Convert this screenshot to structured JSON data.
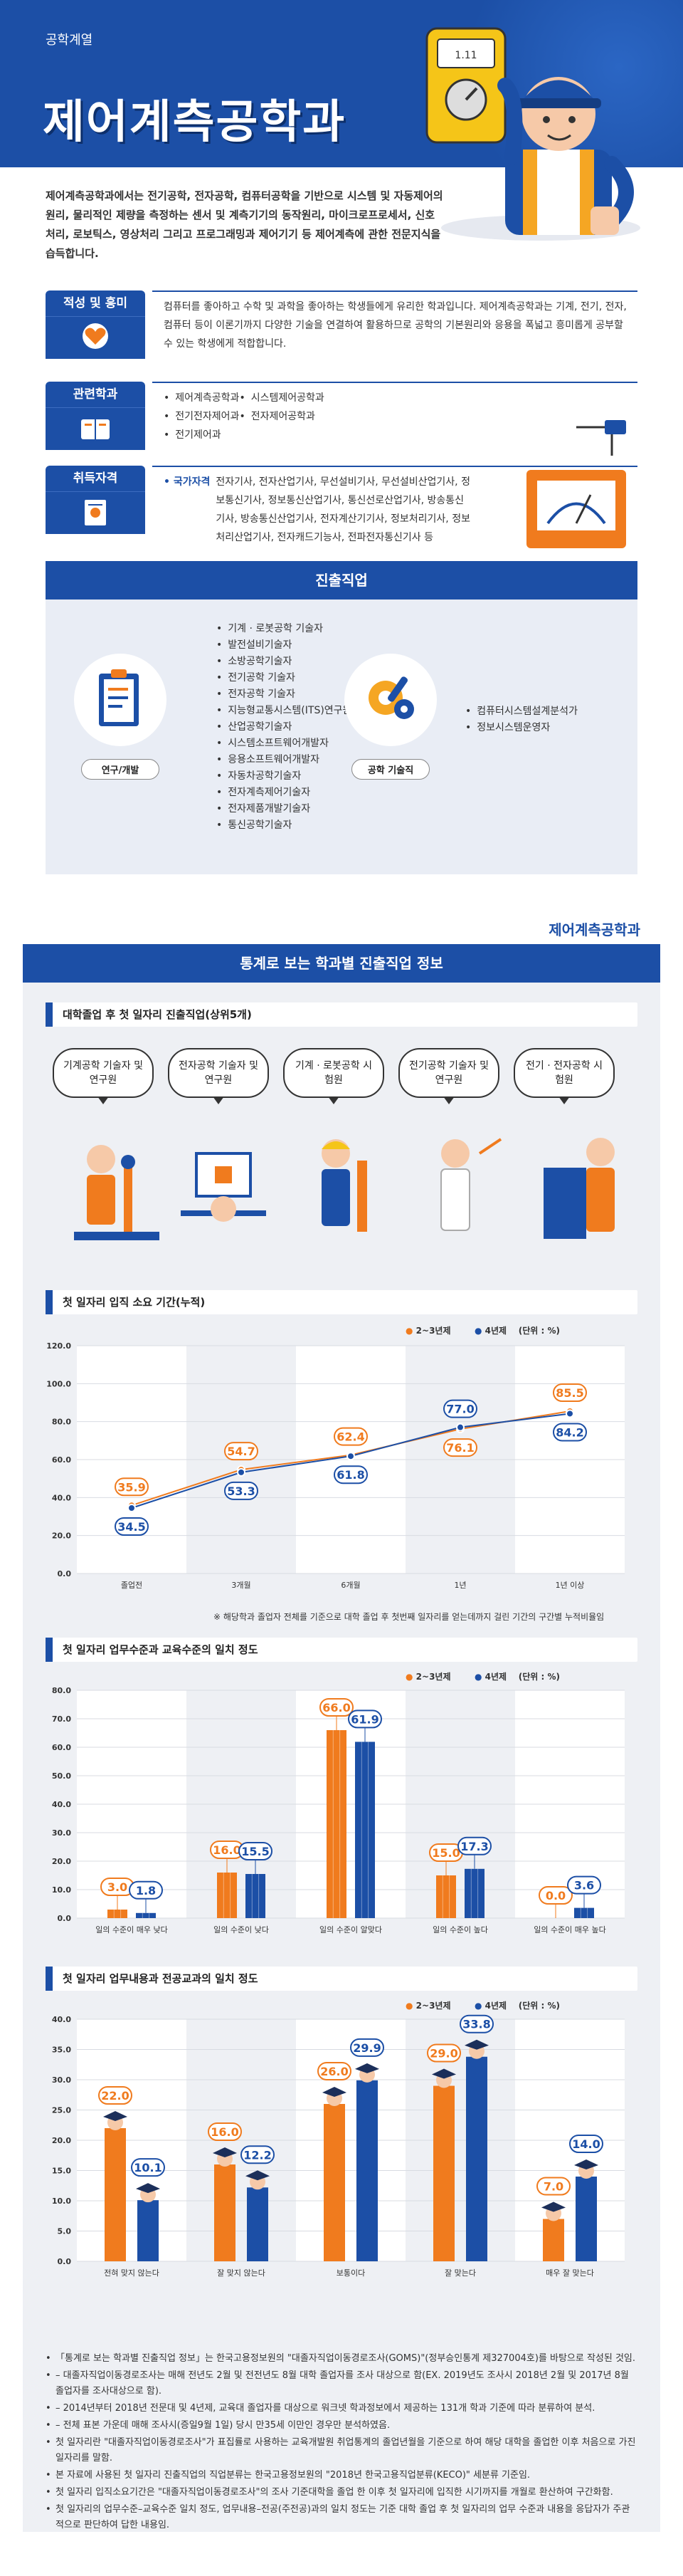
{
  "header": {
    "series": "공학계열",
    "title": "제어계측공학과"
  },
  "intro": "제어계측공학과에서는 전기공학, 전자공학, 컴퓨터공학을 기반으로 시스템 및 자동제어의 원리, 물리적인 제량을 측정하는 센서 및 계측기기의 동작원리, 마이크로프로세서, 신호처리, 로보틱스, 영상처리 그리고 프로그래밍과 제어기기 등 제어계측에 관한 전문지식을 습득합니다.",
  "aptitude": {
    "label": "적성 및 흥미",
    "text": "컴퓨터를 좋아하고 수학 및 과학을 좋아하는 학생들에게 유리한 학과입니다. 제어계측공학과는 기계, 전기, 전자, 컴퓨터 등이 이론기까지 다양한 기술을 연결하여 활용하므로 공학의 기본원리와 응용을 폭넓고 흥미롭게 공부할 수 있는 학생에게 적합합니다."
  },
  "related": {
    "label": "관련학과",
    "left": [
      "제어계측공학과",
      "전기전자제어과",
      "전기제어과"
    ],
    "right": [
      "시스템제어공학과",
      "전자제어공학과"
    ]
  },
  "qualifications": {
    "label": "취득자격",
    "category": "국가자격",
    "items": "전자기사, 전자산업기사, 무선설비기사, 무선설비산업기사, 정보통신기사, 정보통신산업기사, 통신선로산업기사, 방송통신기사, 방송통신산업기사, 전자계산기기사, 정보처리기사, 정보처리산업기사, 전자캐드기능사, 전파전자통신기사 등"
  },
  "careers": {
    "title": "진출직업",
    "research_label": "연구/개발",
    "tech_label": "공학 기술직",
    "research_list": [
      "기계 · 로봇공학 기술자",
      "발전설비기술자",
      "소방공학기술자",
      "전기공학 기술자",
      "전자공학 기술자",
      "지능형교통시스템(ITS)연구원",
      "산업공학기술자",
      "시스템소프트웨어개발자",
      "응용소프트웨어개발자",
      "자동차공학기술자",
      "전자계측제어기술자",
      "전자제품개발기술자",
      "통신공학기술자"
    ],
    "tech_list": [
      "컴퓨터시스템설계분석가",
      "정보시스템운영자"
    ]
  },
  "stats": {
    "dept_tag": "제어계측공학과",
    "title": "통계로 보는 학과별 진출직업 정보",
    "top5_title": "대학졸업 후 첫 일자리 진출직업(상위5개)",
    "top5": [
      "기계공학 기술자 및 연구원",
      "전자공학 기술자 및 연구원",
      "기계 · 로봇공학 시험원",
      "전기공학 기술자 및 연구원",
      "전기 · 전자공학 시험원"
    ]
  },
  "colors": {
    "primary": "#1c4fa6",
    "orange": "#f07b1e",
    "blue": "#1c4fa6",
    "gray": "#eef0f4"
  },
  "chart_data": [
    {
      "type": "line",
      "title": "첫 일자리 입직 소요 기간(누적)",
      "categories": [
        "졸업전",
        "3개월",
        "6개월",
        "1년",
        "1년 이상"
      ],
      "series": [
        {
          "name": "2~3년제",
          "values": [
            35.9,
            54.7,
            62.4,
            76.1,
            85.5
          ]
        },
        {
          "name": "4년제",
          "values": [
            34.5,
            53.3,
            61.8,
            77.0,
            84.2
          ]
        }
      ],
      "unit": "(단위 : %)",
      "ylim": [
        0,
        120
      ],
      "yticks": [
        "0.0",
        "20.0",
        "40.0",
        "60.0",
        "80.0",
        "100.0",
        "120.0"
      ],
      "note": "※ 해당학과 졸업자 전체를 기준으로 대학 졸업 후 첫번째 일자리를 얻는데까지 걸린 기간의 구간별 누적비율임"
    },
    {
      "type": "bar",
      "title": "첫 일자리 업무수준과 교육수준의 일치 정도",
      "categories": [
        "일의 수준이 매우 낮다",
        "일의 수준이 낮다",
        "일의 수준이 알맞다",
        "일의 수준이 높다",
        "일의 수준이 매우 높다"
      ],
      "series": [
        {
          "name": "2~3년제",
          "values": [
            3.0,
            16.0,
            66.0,
            15.0,
            0.0
          ]
        },
        {
          "name": "4년제",
          "values": [
            1.8,
            15.5,
            61.9,
            17.3,
            3.6
          ]
        }
      ],
      "unit": "(단위 : %)",
      "ylim": [
        0,
        80
      ],
      "yticks": [
        "0.0",
        "10.0",
        "20.0",
        "30.0",
        "40.0",
        "50.0",
        "60.0",
        "70.0",
        "80.0"
      ]
    },
    {
      "type": "bar",
      "title": "첫 일자리 업무내용과 전공교과의 일치 정도",
      "categories": [
        "전혀 맞지 않는다",
        "잘 맞지 않는다",
        "보통이다",
        "잘 맞는다",
        "매우 잘 맞는다"
      ],
      "series": [
        {
          "name": "2~3년제",
          "values": [
            22.0,
            16.0,
            26.0,
            29.0,
            7.0
          ]
        },
        {
          "name": "4년제",
          "values": [
            10.1,
            12.2,
            29.9,
            33.8,
            14.0
          ]
        }
      ],
      "unit": "(단위 : %)",
      "ylim": [
        0,
        40
      ],
      "yticks": [
        "0.0",
        "5.0",
        "10.0",
        "15.0",
        "20.0",
        "25.0",
        "30.0",
        "35.0",
        "40.0"
      ]
    }
  ],
  "footnotes": [
    "「통계로 보는 학과별 진출직업 정보」는 한국고용정보원의 \"대졸자직업이동경로조사(GOMS)\"(정부승인통계 제327004호)를 바탕으로 작성된 것임.",
    "– 대졸자직업이동경로조사는 매해 전년도 2월 및 전전년도 8월 대학 졸업자를 조사 대상으로 함(EX. 2019년도 조사시 2018년 2월 및 2017년 8월 졸업자를 조사대상으로 함).",
    "– 2014년부터 2018년 전문대 및 4년제, 교육대 졸업자를 대상으로 워크넷 학과정보에서 제공하는 131개 학과 기준에 따라 분류하여 분석.",
    "– 전체 표본 가운데 매해 조사시(증일9월 1일) 당시 만35세 이만인 경우만 분석하였음.",
    "첫 일자리란 \"대졸자직업이동경로조사\"가 표집률로 사용하는 교육개발원 취업통계의 졸업년월을 기준으로 하여 해당 대학을 졸업한 이후 처음으로 가진 일자리를 말함.",
    "본 자료에 사용된 첫 일자리 진출직업의 직업분류는 한국고용정보원의 \"2018년 한국고용직업분류(KECO)\" 세분류 기준임.",
    "첫 일자리 입직소요기간은 \"대졸자직업이동경로조사\"의 조사 기준대학을 졸업 한 이후 첫 일자리에 입직한 시기까지를 개월로 환산하여 구간화함.",
    "첫 일자리의 업무수준–교육수준 일치 정도, 업무내용–전공(주전공)과의 일치 정도는 기준 대학 졸업 후 첫 일자리의 업무 수준과 내용을 응답자가 주관적으로 판단하여 답한 내용임."
  ]
}
